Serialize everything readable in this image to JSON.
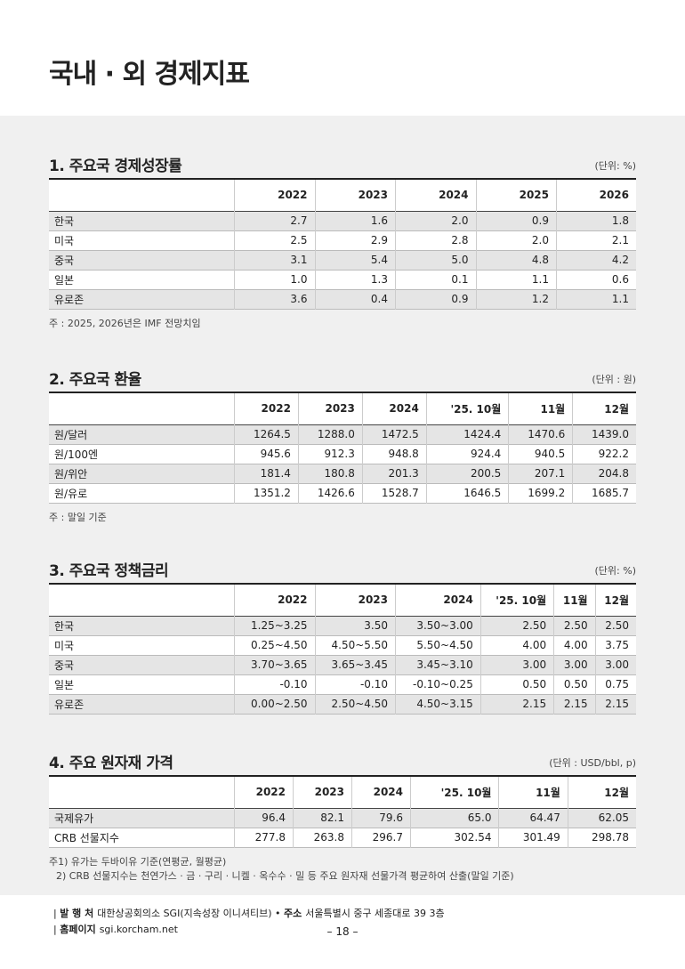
{
  "header": {
    "title": "국내 · 외 경제지표"
  },
  "sections": [
    {
      "title": "1. 주요국 경제성장률",
      "unit": "(단위: %)",
      "columns": [
        "2022",
        "2023",
        "2024",
        "2025",
        "2026"
      ],
      "rows": [
        [
          "한국",
          "2.7",
          "1.6",
          "2.0",
          "0.9",
          "1.8"
        ],
        [
          "미국",
          "2.5",
          "2.9",
          "2.8",
          "2.0",
          "2.1"
        ],
        [
          "중국",
          "3.1",
          "5.4",
          "5.0",
          "4.8",
          "4.2"
        ],
        [
          "일본",
          "1.0",
          "1.3",
          "0.1",
          "1.1",
          "0.6"
        ],
        [
          "유로존",
          "3.6",
          "0.4",
          "0.9",
          "1.2",
          "1.1"
        ]
      ],
      "notes": [
        "주 : 2025, 2026년은 IMF 전망치임"
      ]
    },
    {
      "title": "2. 주요국 환율",
      "unit": "(단위 : 원)",
      "columns": [
        "2022",
        "2023",
        "2024",
        "'25. 10월",
        "11월",
        "12월"
      ],
      "rows": [
        [
          "원/달러",
          "1264.5",
          "1288.0",
          "1472.5",
          "1424.4",
          "1470.6",
          "1439.0"
        ],
        [
          "원/100엔",
          "945.6",
          "912.3",
          "948.8",
          "924.4",
          "940.5",
          "922.2"
        ],
        [
          "원/위안",
          "181.4",
          "180.8",
          "201.3",
          "200.5",
          "207.1",
          "204.8"
        ],
        [
          "원/유로",
          "1351.2",
          "1426.6",
          "1528.7",
          "1646.5",
          "1699.2",
          "1685.7"
        ]
      ],
      "notes": [
        "주 : 말일 기준"
      ]
    },
    {
      "title": "3. 주요국 정책금리",
      "unit": "(단위: %)",
      "columns": [
        "2022",
        "2023",
        "2024",
        "'25. 10월",
        "11월",
        "12월"
      ],
      "rows": [
        [
          "한국",
          "1.25~3.25",
          "3.50",
          "3.50~3.00",
          "2.50",
          "2.50",
          "2.50"
        ],
        [
          "미국",
          "0.25~4.50",
          "4.50~5.50",
          "5.50~4.50",
          "4.00",
          "4.00",
          "3.75"
        ],
        [
          "중국",
          "3.70~3.65",
          "3.65~3.45",
          "3.45~3.10",
          "3.00",
          "3.00",
          "3.00"
        ],
        [
          "일본",
          "-0.10",
          "-0.10",
          "-0.10~0.25",
          "0.50",
          "0.50",
          "0.75"
        ],
        [
          "유로존",
          "0.00~2.50",
          "2.50~4.50",
          "4.50~3.15",
          "2.15",
          "2.15",
          "2.15"
        ]
      ],
      "notes": []
    },
    {
      "title": "4. 주요 원자재 가격",
      "unit": "(단위 : USD/bbl, p)",
      "columns": [
        "2022",
        "2023",
        "2024",
        "'25. 10월",
        "11월",
        "12월"
      ],
      "rows": [
        [
          "국제유가",
          "96.4",
          "82.1",
          "79.6",
          "65.0",
          "64.47",
          "62.05"
        ],
        [
          "CRB 선물지수",
          "277.8",
          "263.8",
          "296.7",
          "302.54",
          "301.49",
          "298.78"
        ]
      ],
      "notes": [
        "주1) 유가는 두바이유 기준(연평균, 월평균)",
        "2) CRB 선물지수는 천연가스 · 금 · 구리 · 니켈 · 옥수수 · 밀 등 주요 원자재 선물가격 평균하여 산출(말일 기준)"
      ]
    }
  ],
  "footer": {
    "publisher_label": "발 행 처",
    "publisher": "대한상공회의소 SGI(지속성장 이니셔티브)",
    "address_label": "주소",
    "address": "서울특별시 중구 세종대로 39 3층",
    "homepage_label": "홈페이지",
    "homepage": "sgi.korcham.net",
    "page": "– 18 –"
  }
}
